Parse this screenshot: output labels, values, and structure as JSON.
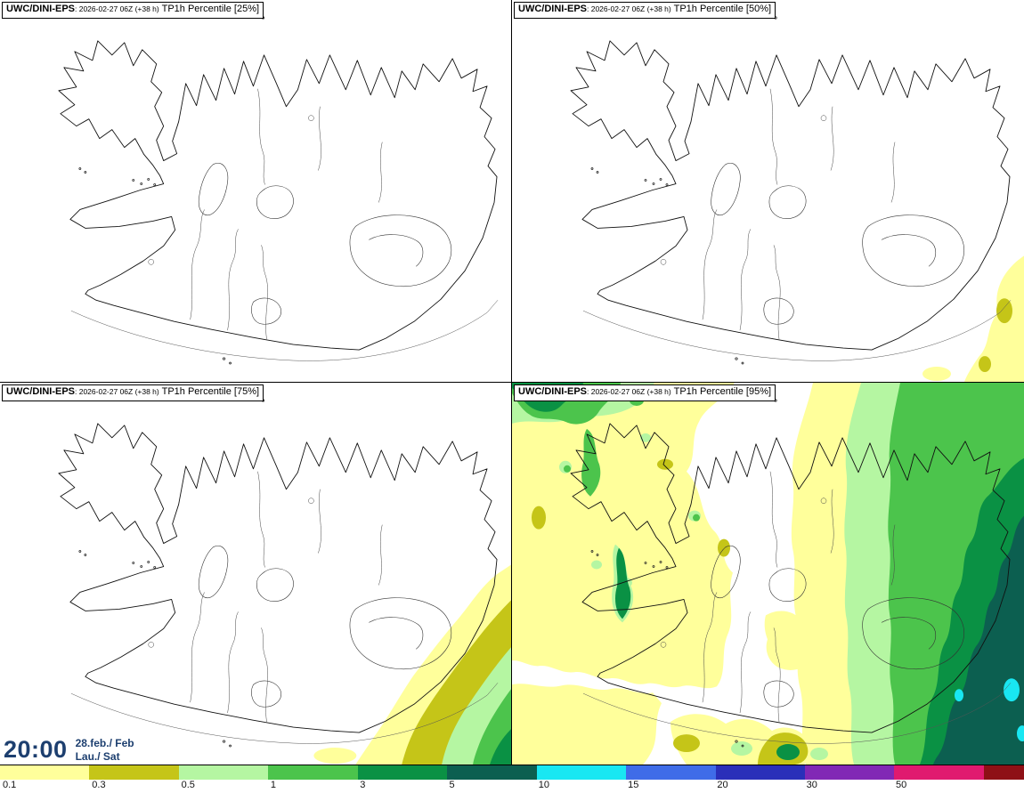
{
  "panels": [
    {
      "model": "UWC/DINI-EPS",
      "run": ": 2026-02-27 06Z (+38 h)",
      "param": "TP1h Percentile [25%]"
    },
    {
      "model": "UWC/DINI-EPS",
      "run": ": 2026-02-27 06Z (+38 h)",
      "param": "TP1h Percentile [50%]"
    },
    {
      "model": "UWC/DINI-EPS",
      "run": ": 2026-02-27 06Z (+38 h)",
      "param": "TP1h Percentile [75%]"
    },
    {
      "model": "UWC/DINI-EPS",
      "run": ": 2026-02-27 06Z (+38 h)",
      "param": "TP1h Percentile [95%]"
    }
  ],
  "clock": {
    "time": "20:00",
    "date": "28.feb./ Feb",
    "day": "Lau./ Sat",
    "color": "#1d3f6f"
  },
  "colorbar": {
    "labels": [
      "0.1",
      "0.3",
      "0.5",
      "1",
      "3",
      "5",
      "10",
      "15",
      "20",
      "30",
      "50"
    ],
    "colors": [
      "#ffff9b",
      "#c5c518",
      "#b5f6a2",
      "#4cc44c",
      "#0a9144",
      "#0c5f50",
      "#19e7f2",
      "#3f6ce8",
      "#2a2fb9",
      "#8128b5",
      "#e01a6f",
      "#8e1016"
    ]
  }
}
